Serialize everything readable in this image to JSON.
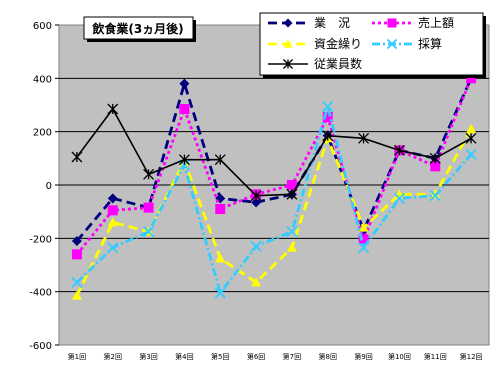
{
  "chart_data": {
    "type": "line",
    "title": "飲食業(3ヵ月後)",
    "categories": [
      "第1回",
      "第2回",
      "第3回",
      "第4回",
      "第5回",
      "第6回",
      "第7回",
      "第8回",
      "第9回",
      "第10回",
      "第11回",
      "第12回"
    ],
    "ylim": [
      -600,
      600
    ],
    "yticks": [
      -600,
      -400,
      -200,
      0,
      200,
      400,
      600
    ],
    "grid": true,
    "legend_position": "top-right",
    "series": [
      {
        "name": "業　況",
        "color": "#00007f",
        "dash": "dash",
        "marker": "diamond",
        "values": [
          -210,
          -50,
          -85,
          380,
          -50,
          -65,
          -35,
          185,
          -170,
          130,
          100,
          400
        ]
      },
      {
        "name": "売上額",
        "color": "#ff00ff",
        "dash": "dot",
        "marker": "square",
        "values": [
          -260,
          -95,
          -85,
          285,
          -90,
          -35,
          0,
          255,
          -205,
          130,
          70,
          400
        ]
      },
      {
        "name": "資金繰り",
        "color": "#ffff00",
        "dash": "dash",
        "marker": "triangle",
        "values": [
          -415,
          -140,
          -175,
          90,
          -275,
          -365,
          -235,
          175,
          -160,
          -35,
          -35,
          210
        ]
      },
      {
        "name": "採算",
        "color": "#33ccff",
        "dash": "dashdot",
        "marker": "x",
        "values": [
          -365,
          -235,
          -175,
          75,
          -405,
          -230,
          -175,
          295,
          -235,
          -50,
          -40,
          115
        ]
      },
      {
        "name": "従業員数",
        "color": "#000000",
        "dash": "solid",
        "marker": "star",
        "values": [
          105,
          285,
          40,
          95,
          95,
          -40,
          -35,
          185,
          175,
          130,
          100,
          175
        ]
      }
    ]
  }
}
